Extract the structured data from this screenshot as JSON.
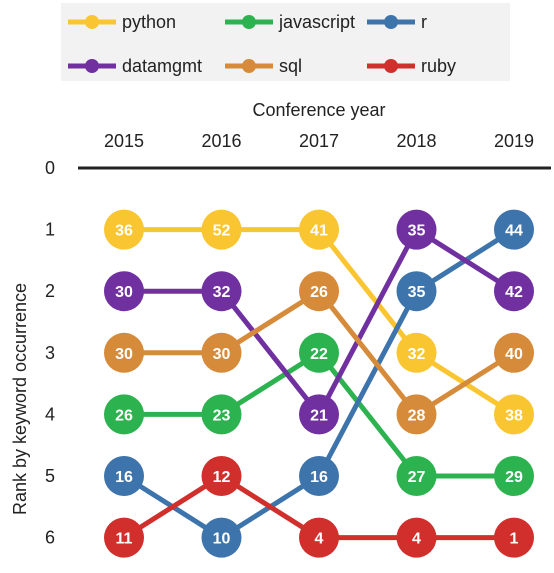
{
  "chart_data": {
    "type": "line",
    "xlabel": "Conference year",
    "ylabel": "Rank by keyword occurrence",
    "x": [
      "2015",
      "2016",
      "2017",
      "2018",
      "2019"
    ],
    "y_ticks": [
      0,
      1,
      2,
      3,
      4,
      5,
      6
    ],
    "ylim": [
      0,
      6
    ],
    "y_inverted": true,
    "legend_position": "top",
    "series": [
      {
        "name": "python",
        "color": "#f9c531",
        "rank": [
          1,
          1,
          1,
          3,
          4
        ],
        "labels": [
          36,
          52,
          41,
          32,
          38
        ]
      },
      {
        "name": "javascript",
        "color": "#2db250",
        "rank": [
          4,
          4,
          3,
          5,
          5
        ],
        "labels": [
          26,
          23,
          22,
          27,
          29
        ]
      },
      {
        "name": "r",
        "color": "#3d74ab",
        "rank": [
          5,
          6,
          5,
          2,
          1
        ],
        "labels": [
          16,
          10,
          16,
          35,
          44
        ]
      },
      {
        "name": "datamgmt",
        "color": "#7030a0",
        "rank": [
          2,
          2,
          4,
          1,
          2
        ],
        "labels": [
          30,
          32,
          21,
          35,
          42
        ]
      },
      {
        "name": "sql",
        "color": "#d68b3b",
        "rank": [
          3,
          3,
          2,
          4,
          3
        ],
        "labels": [
          30,
          30,
          26,
          28,
          40
        ]
      },
      {
        "name": "ruby",
        "color": "#d12f2c",
        "rank": [
          6,
          5,
          6,
          6,
          6
        ],
        "labels": [
          11,
          12,
          4,
          4,
          1
        ]
      }
    ]
  }
}
